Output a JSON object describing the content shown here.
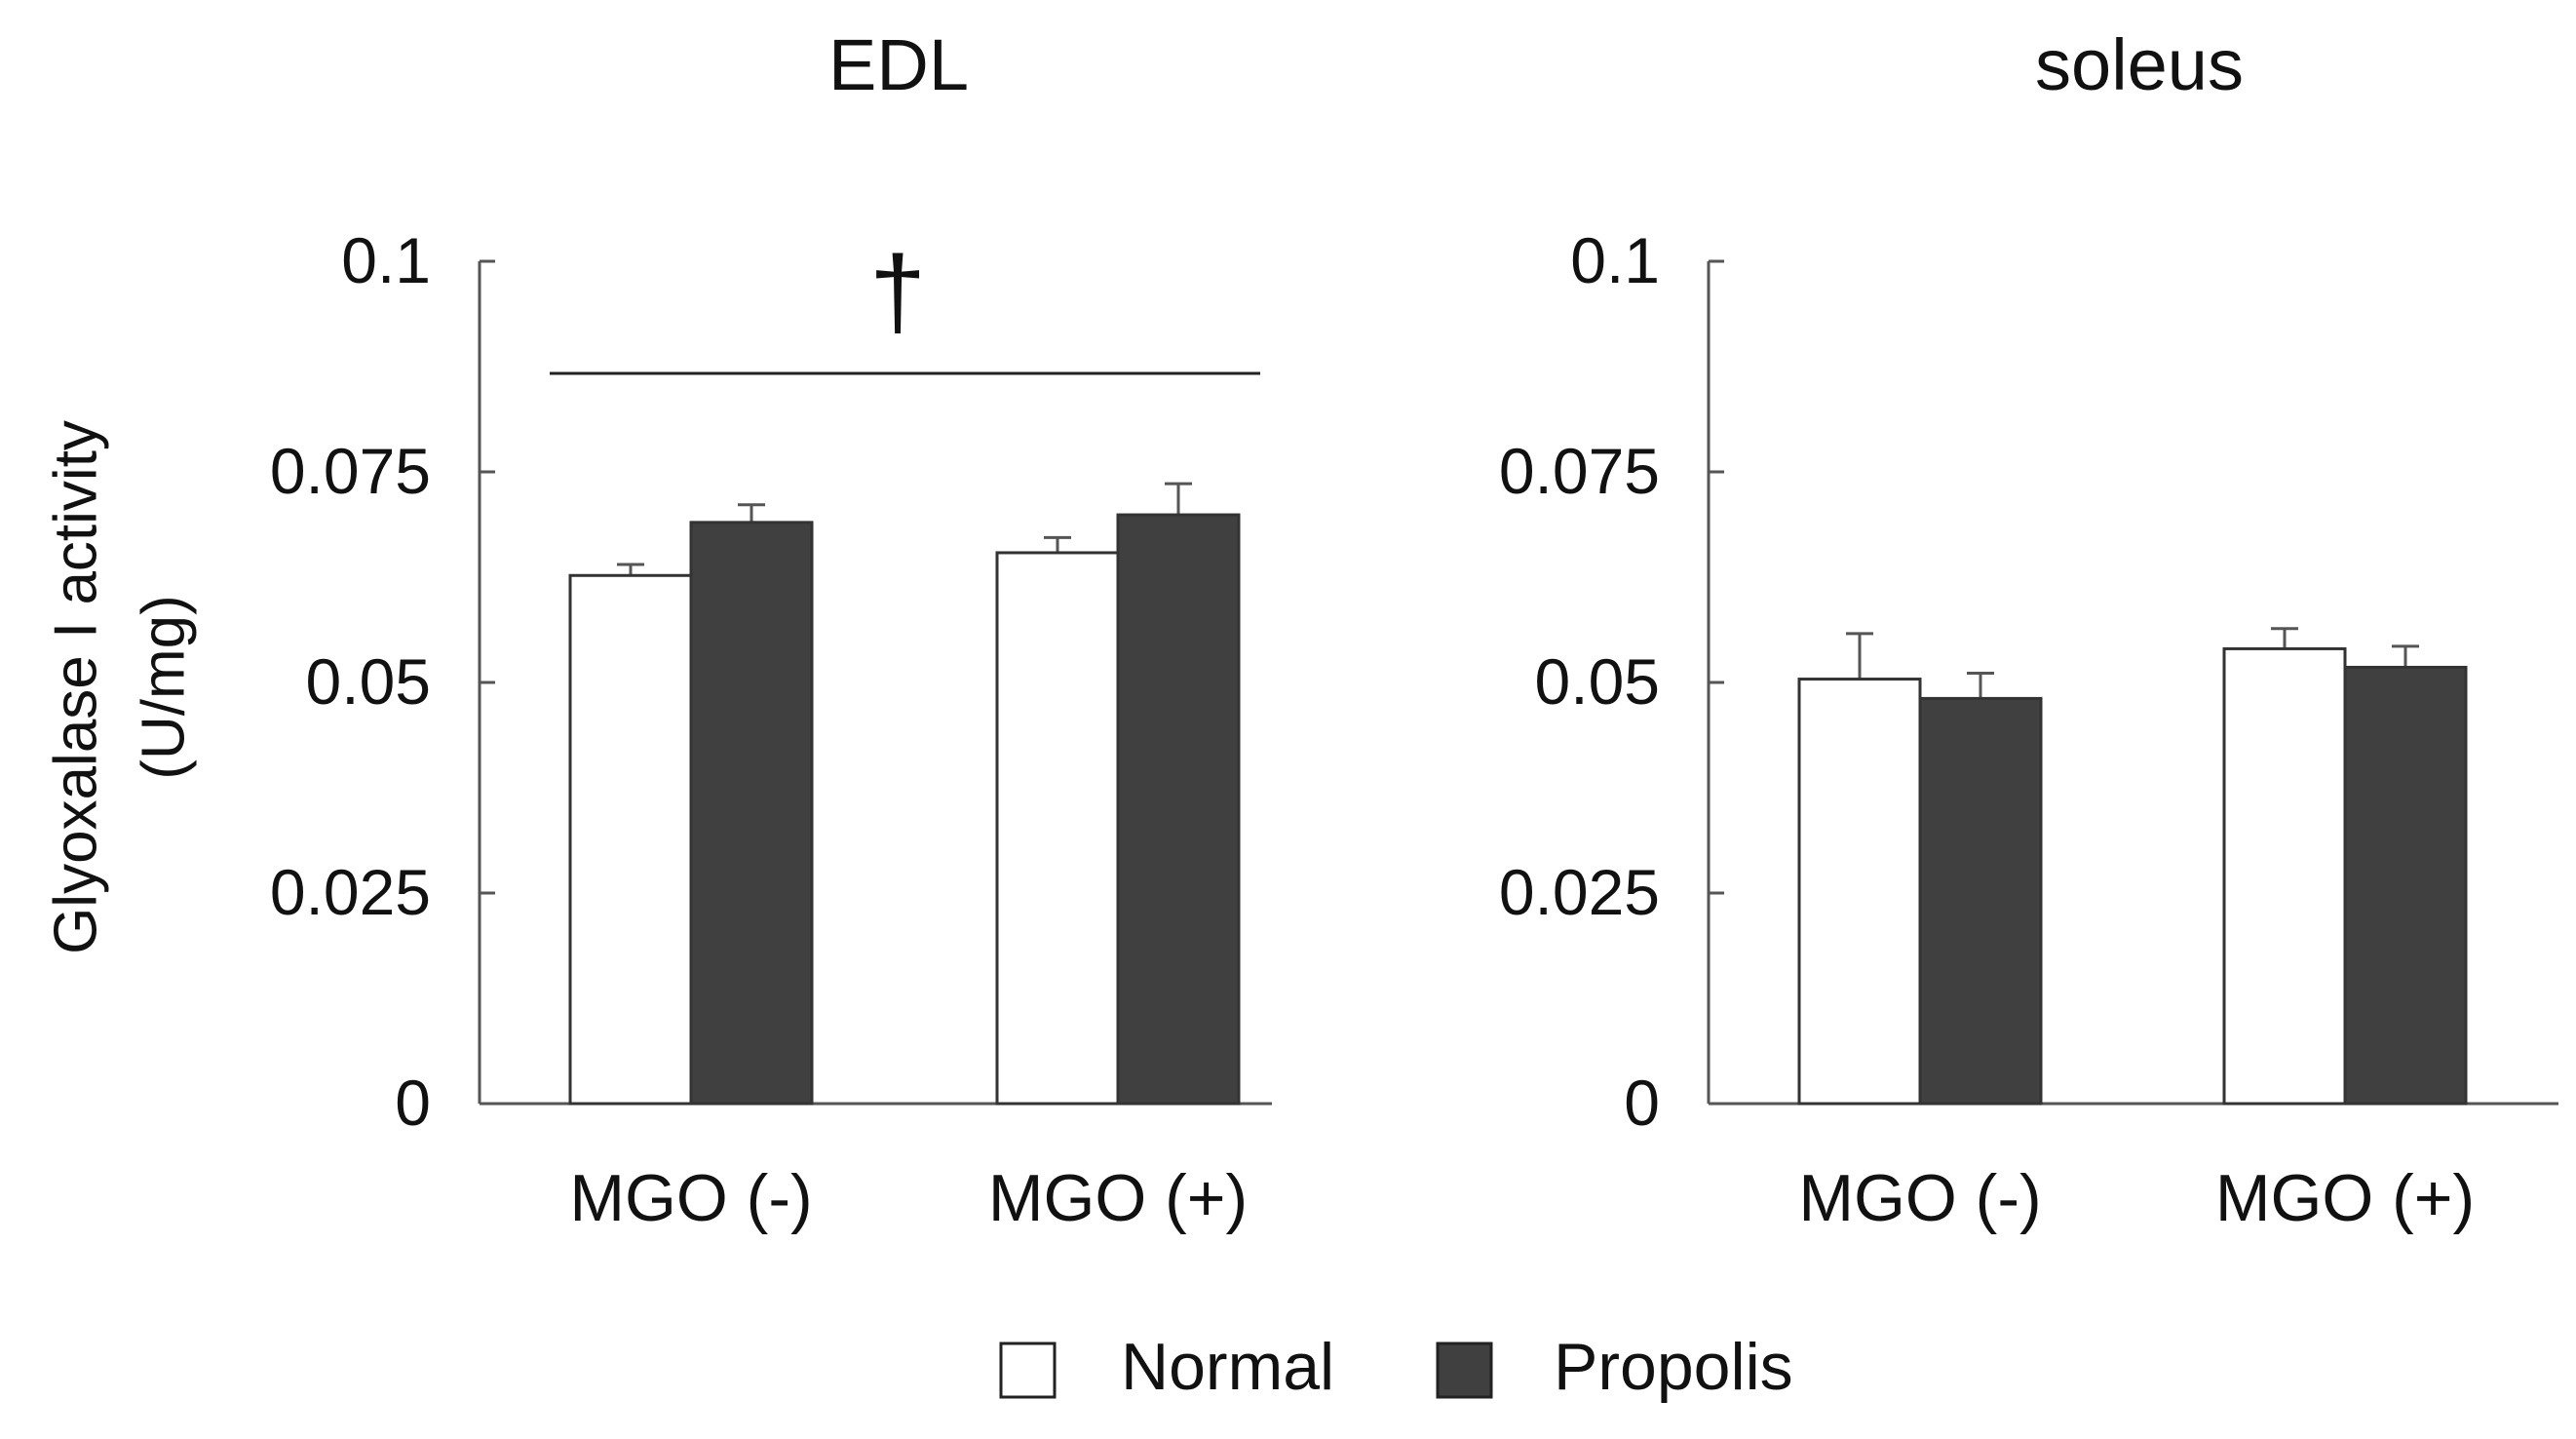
{
  "figure": {
    "ylabel_line1": "Glyoxalase I activity",
    "ylabel_line2": "(U/mg)",
    "legend": [
      {
        "label": "Normal",
        "color": "#ffffff"
      },
      {
        "label": "Propolis",
        "color": "#404040"
      }
    ]
  },
  "chart_data": [
    {
      "type": "bar",
      "title": "EDL",
      "xlabel": "",
      "ylabel": "Glyoxalase I activity (U/mg)",
      "ylim": [
        0,
        0.1
      ],
      "yticks": [
        "0",
        "0.025",
        "0.05",
        "0.075",
        "0.1"
      ],
      "categories": [
        "MGO (-)",
        "MGO (+)"
      ],
      "series": [
        {
          "name": "Normal",
          "color": "#ffffff",
          "values": [
            0.0627,
            0.0654
          ],
          "errors": [
            0.0013,
            0.0018
          ]
        },
        {
          "name": "Propolis",
          "color": "#404040",
          "values": [
            0.069,
            0.0699
          ],
          "errors": [
            0.0021,
            0.0037
          ]
        }
      ],
      "annotation": {
        "symbol": "†",
        "note": "significance bracket spanning both groups"
      }
    },
    {
      "type": "bar",
      "title": "soleus",
      "xlabel": "",
      "ylabel": "",
      "ylim": [
        0,
        0.1
      ],
      "yticks": [
        "0",
        "0.025",
        "0.05",
        "0.075",
        "0.1"
      ],
      "categories": [
        "MGO (-)",
        "MGO (+)"
      ],
      "series": [
        {
          "name": "Normal",
          "color": "#ffffff",
          "values": [
            0.0504,
            0.054
          ],
          "errors": [
            0.0054,
            0.0024
          ]
        },
        {
          "name": "Propolis",
          "color": "#404040",
          "values": [
            0.0481,
            0.0518
          ],
          "errors": [
            0.003,
            0.0025
          ]
        }
      ],
      "annotation": null
    }
  ]
}
